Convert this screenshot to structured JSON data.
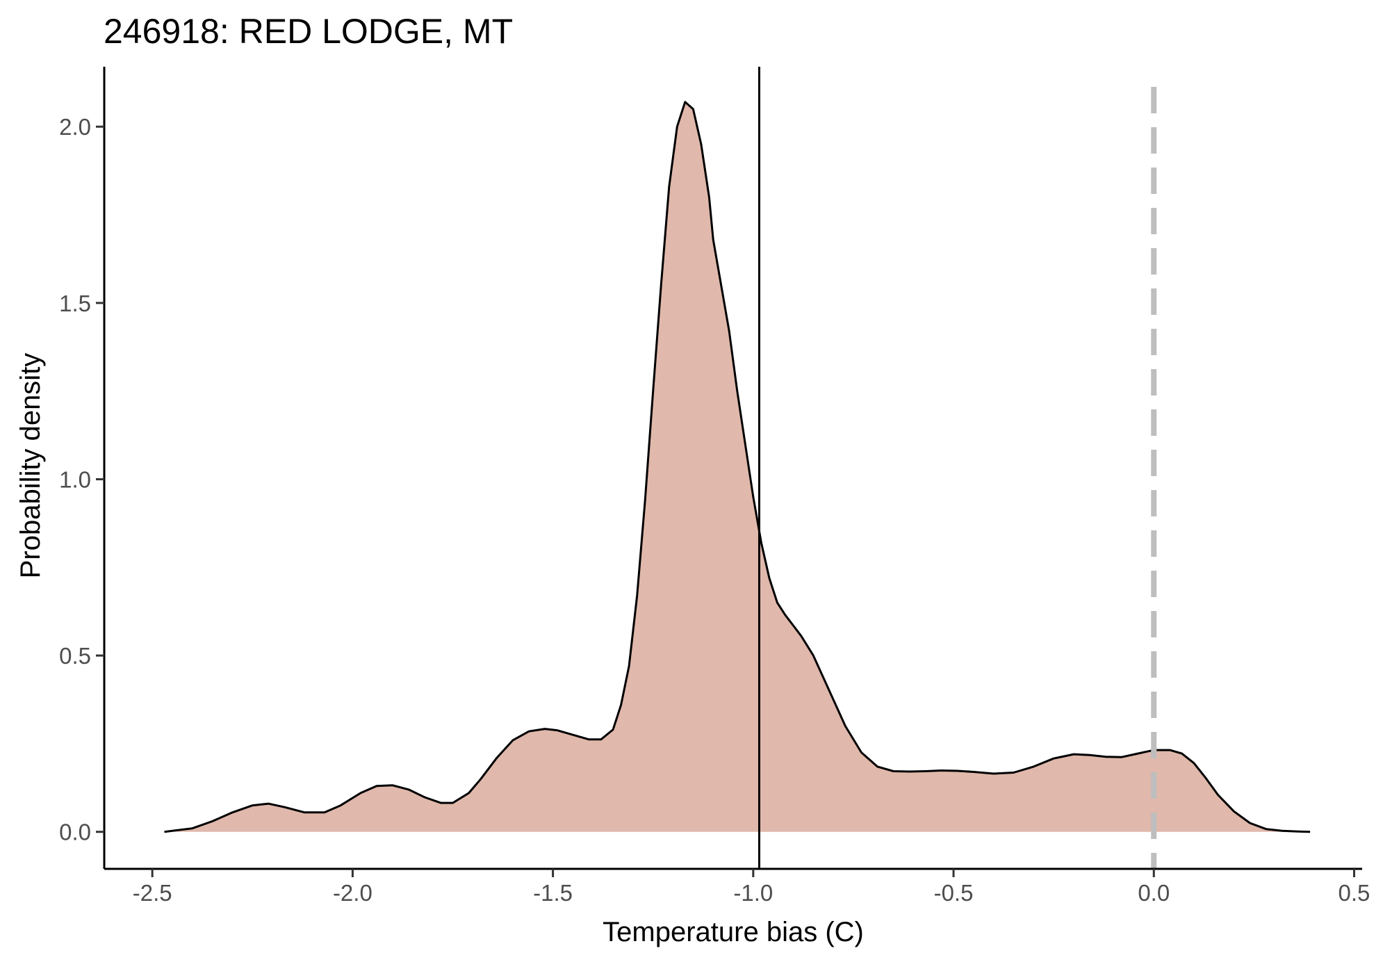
{
  "chart_data": {
    "type": "area",
    "title": "246918: RED LODGE, MT",
    "xlabel": "Temperature bias (C)",
    "ylabel": "Probability density",
    "xlim": [
      -2.62,
      0.52
    ],
    "ylim": [
      -0.105,
      2.17
    ],
    "x_ticks": [
      -2.5,
      -2.0,
      -1.5,
      -1.0,
      -0.5,
      0.0,
      0.5
    ],
    "x_tick_labels": [
      "-2.5",
      "-2.0",
      "-1.5",
      "-1.0",
      "-0.5",
      "0.0",
      "0.5"
    ],
    "y_ticks": [
      0.0,
      0.5,
      1.0,
      1.5,
      2.0
    ],
    "y_tick_labels": [
      "0.0",
      "0.5",
      "1.0",
      "1.5",
      "2.0"
    ],
    "grid": false,
    "fill_color": "#e0b8ac",
    "line_color": "#000000",
    "series": [
      {
        "x": [
          -2.47,
          -2.4,
          -2.35,
          -2.3,
          -2.25,
          -2.21,
          -2.17,
          -2.12,
          -2.07,
          -2.03,
          -1.98,
          -1.94,
          -1.9,
          -1.86,
          -1.82,
          -1.78,
          -1.75,
          -1.71,
          -1.68,
          -1.64,
          -1.6,
          -1.56,
          -1.52,
          -1.49,
          -1.45,
          -1.41,
          -1.38,
          -1.35,
          -1.33,
          -1.31,
          -1.29,
          -1.27,
          -1.25,
          -1.23,
          -1.21,
          -1.19,
          -1.17,
          -1.15,
          -1.13,
          -1.11,
          -1.1,
          -1.08,
          -1.06,
          -1.04,
          -1.02,
          -1.0,
          -0.98,
          -0.96,
          -0.94,
          -0.92,
          -0.9,
          -0.88,
          -0.85,
          -0.81,
          -0.77,
          -0.73,
          -0.69,
          -0.65,
          -0.61,
          -0.57,
          -0.53,
          -0.49,
          -0.45,
          -0.4,
          -0.35,
          -0.3,
          -0.25,
          -0.2,
          -0.16,
          -0.12,
          -0.08,
          -0.04,
          0.0,
          0.04,
          0.07,
          0.1,
          0.13,
          0.16,
          0.2,
          0.24,
          0.28,
          0.32,
          0.36,
          0.39
        ],
        "y": [
          0.0,
          0.01,
          0.03,
          0.055,
          0.075,
          0.08,
          0.07,
          0.055,
          0.055,
          0.075,
          0.11,
          0.13,
          0.132,
          0.12,
          0.098,
          0.082,
          0.082,
          0.11,
          0.15,
          0.21,
          0.26,
          0.285,
          0.292,
          0.288,
          0.275,
          0.262,
          0.262,
          0.29,
          0.36,
          0.47,
          0.67,
          0.94,
          1.25,
          1.55,
          1.83,
          2.0,
          2.07,
          2.05,
          1.95,
          1.8,
          1.68,
          1.55,
          1.42,
          1.25,
          1.1,
          0.95,
          0.82,
          0.72,
          0.65,
          0.615,
          0.585,
          0.555,
          0.5,
          0.4,
          0.3,
          0.225,
          0.185,
          0.172,
          0.171,
          0.172,
          0.174,
          0.173,
          0.17,
          0.165,
          0.168,
          0.185,
          0.208,
          0.22,
          0.218,
          0.213,
          0.212,
          0.222,
          0.232,
          0.232,
          0.222,
          0.195,
          0.152,
          0.105,
          0.058,
          0.025,
          0.008,
          0.003,
          0.001,
          0.0
        ]
      }
    ],
    "reference_lines": [
      {
        "x": -0.985,
        "style": "solid",
        "color": "#000000"
      },
      {
        "x": 0.0,
        "style": "dashed",
        "color": "#bebebe"
      }
    ]
  }
}
